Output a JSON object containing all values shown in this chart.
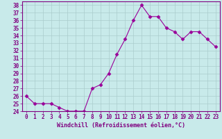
{
  "x": [
    0,
    1,
    2,
    3,
    4,
    5,
    6,
    7,
    8,
    9,
    10,
    11,
    12,
    13,
    14,
    15,
    16,
    17,
    18,
    19,
    20,
    21,
    22,
    23
  ],
  "y": [
    26.0,
    25.0,
    25.0,
    25.0,
    24.5,
    24.0,
    24.0,
    24.0,
    27.0,
    27.5,
    29.0,
    31.5,
    33.5,
    36.0,
    38.0,
    36.5,
    36.5,
    35.0,
    34.5,
    33.5,
    34.5,
    34.5,
    33.5,
    32.5
  ],
  "line_color": "#990099",
  "marker": "D",
  "marker_size": 2.5,
  "bg_color": "#c8eaea",
  "grid_color": "#aacccc",
  "xlabel": "Windchill (Refroidissement éolien,°C)",
  "ylim": [
    24,
    38.5
  ],
  "xlim": [
    -0.5,
    23.5
  ],
  "yticks": [
    24,
    25,
    26,
    27,
    28,
    29,
    30,
    31,
    32,
    33,
    34,
    35,
    36,
    37,
    38
  ],
  "xticks": [
    0,
    1,
    2,
    3,
    4,
    5,
    6,
    7,
    8,
    9,
    10,
    11,
    12,
    13,
    14,
    15,
    16,
    17,
    18,
    19,
    20,
    21,
    22,
    23
  ],
  "tick_color": "#800080",
  "label_fontsize": 5.5,
  "xlabel_fontsize": 6.0,
  "spine_color": "#800080"
}
